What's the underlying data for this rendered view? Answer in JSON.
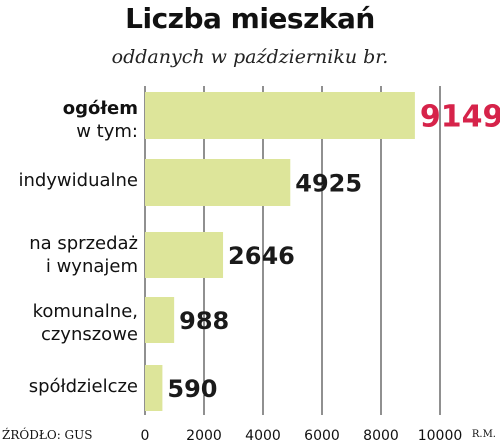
{
  "chart_data": {
    "type": "bar",
    "orientation": "horizontal",
    "title": "Liczba mieszkań",
    "subtitle": "oddanych w październiku br.",
    "categories": [
      [
        "ogółem",
        "w tym:"
      ],
      [
        "indywidualne"
      ],
      [
        "na sprzedaż",
        "i wynajem"
      ],
      [
        "komunalne,",
        "czynszowe"
      ],
      [
        "spółdzielcze"
      ]
    ],
    "values": [
      9149,
      4925,
      2646,
      988,
      590
    ],
    "value_labels": [
      "9149",
      "4925",
      "2646",
      "988",
      "590"
    ],
    "xlim": [
      0,
      10000
    ],
    "xticks": [
      0,
      2000,
      4000,
      6000,
      8000,
      10000
    ],
    "xtick_labels": [
      "0",
      "2000",
      "4000",
      "6000",
      "8000",
      "10000"
    ],
    "grid": true,
    "bar_color": "#dde59a",
    "highlight_color": "#d6234a",
    "source": "ŹRÓDŁO: GUS",
    "author": "R.M."
  }
}
